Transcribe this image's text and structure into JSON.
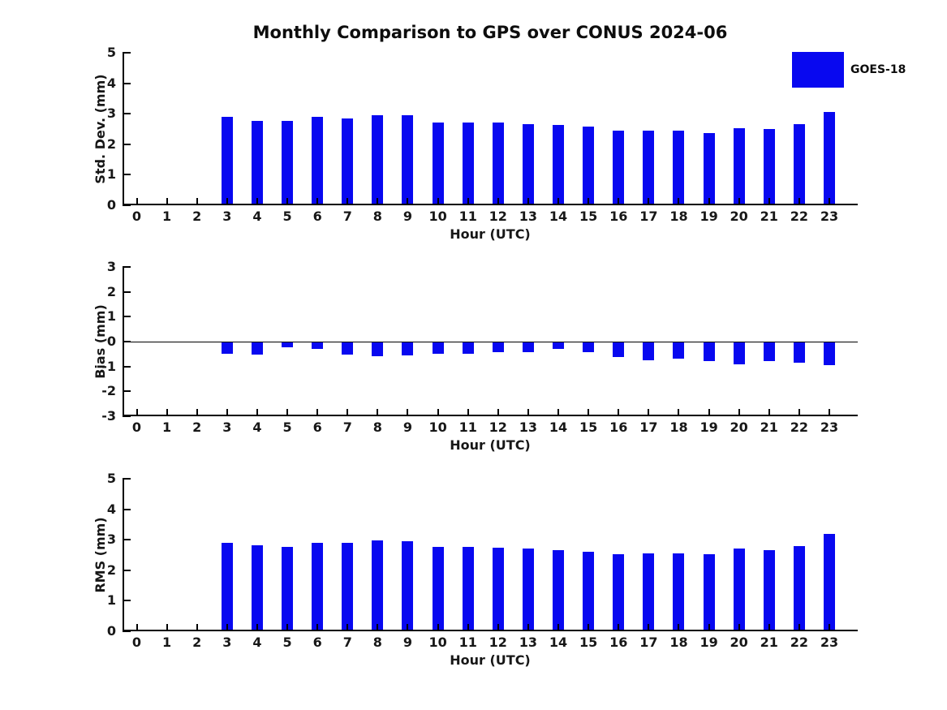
{
  "title": "Monthly Comparison to GPS over CONUS 2024-06",
  "legend": {
    "label": "GOES-18",
    "position": "upper right"
  },
  "colors": {
    "bar": "#0808f0",
    "axis": "#000000",
    "text": "#171717",
    "background": "#ffffff"
  },
  "chart_data": [
    {
      "type": "bar",
      "title": "Monthly Comparison to GPS over CONUS 2024-06",
      "ylabel": "Std. Dev. (mm)",
      "xlabel": "Hour (UTC)",
      "ylim": [
        0,
        5
      ],
      "yticks": [
        0,
        1,
        2,
        3,
        4,
        5
      ],
      "grid": false,
      "legend_position": "upper right",
      "categories": [
        "0",
        "1",
        "2",
        "3",
        "4",
        "5",
        "6",
        "7",
        "8",
        "9",
        "10",
        "11",
        "12",
        "13",
        "14",
        "15",
        "16",
        "17",
        "18",
        "19",
        "20",
        "21",
        "22",
        "23"
      ],
      "series": [
        {
          "name": "GOES-18",
          "color": "#0808f0",
          "values": [
            0,
            0,
            0,
            2.89,
            2.77,
            2.77,
            2.89,
            2.85,
            2.95,
            2.95,
            2.72,
            2.72,
            2.7,
            2.66,
            2.63,
            2.58,
            2.44,
            2.44,
            2.44,
            2.38,
            2.53,
            2.5,
            2.66,
            3.06
          ]
        }
      ]
    },
    {
      "type": "bar",
      "title": "",
      "ylabel": "Bias (mm)",
      "xlabel": "Hour (UTC)",
      "ylim": [
        -3,
        3
      ],
      "yticks": [
        -3,
        -2,
        -1,
        0,
        1,
        2,
        3
      ],
      "grid": false,
      "zero_line": true,
      "categories": [
        "0",
        "1",
        "2",
        "3",
        "4",
        "5",
        "6",
        "7",
        "8",
        "9",
        "10",
        "11",
        "12",
        "13",
        "14",
        "15",
        "16",
        "17",
        "18",
        "19",
        "20",
        "21",
        "22",
        "23"
      ],
      "series": [
        {
          "name": "GOES-18",
          "color": "#0808f0",
          "values": [
            0,
            0,
            0,
            -0.5,
            -0.52,
            -0.22,
            -0.3,
            -0.53,
            -0.6,
            -0.55,
            -0.48,
            -0.48,
            -0.44,
            -0.41,
            -0.29,
            -0.43,
            -0.63,
            -0.74,
            -0.68,
            -0.79,
            -0.9,
            -0.79,
            -0.84,
            -0.96
          ]
        }
      ]
    },
    {
      "type": "bar",
      "title": "",
      "ylabel": "RMS (mm)",
      "xlabel": "Hour (UTC)",
      "ylim": [
        0,
        5
      ],
      "yticks": [
        0,
        1,
        2,
        3,
        4,
        5
      ],
      "grid": false,
      "categories": [
        "0",
        "1",
        "2",
        "3",
        "4",
        "5",
        "6",
        "7",
        "8",
        "9",
        "10",
        "11",
        "12",
        "13",
        "14",
        "15",
        "16",
        "17",
        "18",
        "19",
        "20",
        "21",
        "22",
        "23"
      ],
      "series": [
        {
          "name": "GOES-18",
          "color": "#0808f0",
          "values": [
            0,
            0,
            0,
            2.91,
            2.81,
            2.77,
            2.89,
            2.91,
            2.98,
            2.96,
            2.77,
            2.77,
            2.74,
            2.7,
            2.65,
            2.61,
            2.52,
            2.55,
            2.55,
            2.52,
            2.7,
            2.65,
            2.78,
            3.19
          ]
        }
      ]
    }
  ]
}
